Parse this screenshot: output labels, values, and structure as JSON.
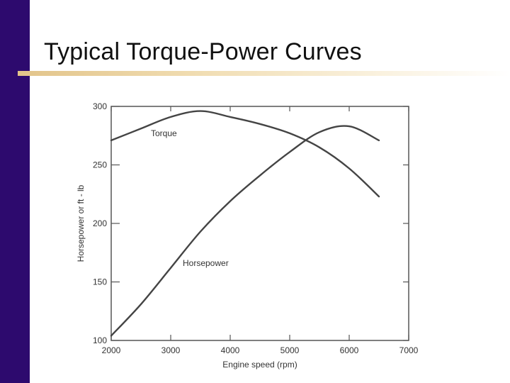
{
  "slide": {
    "title": "Typical Torque-Power Curves"
  },
  "colors": {
    "side_bar": "#2d0a6e",
    "title_rule": "#e2c48a",
    "curve": "#444444",
    "frame": "#555555"
  },
  "chart_data": {
    "type": "line",
    "title": "",
    "xlabel": "Engine speed (rpm)",
    "ylabel": "Horsepower or ft - lb",
    "xlim": [
      2000,
      7000
    ],
    "ylim": [
      100,
      300
    ],
    "x_ticks": [
      2000,
      3000,
      4000,
      5000,
      6000,
      7000
    ],
    "y_ticks": [
      100,
      150,
      200,
      250,
      300
    ],
    "grid": false,
    "legend": "none (curves labelled inline)",
    "series": [
      {
        "name": "Torque",
        "x": [
          2000,
          2500,
          3000,
          3500,
          4000,
          4500,
          5000,
          5500,
          6000,
          6500
        ],
        "y": [
          271,
          281,
          291,
          296,
          291,
          285,
          277,
          265,
          247,
          223
        ]
      },
      {
        "name": "Horsepower",
        "x": [
          2000,
          2500,
          3000,
          3500,
          4000,
          4500,
          5000,
          5500,
          6000,
          6500
        ],
        "y": [
          104,
          131,
          162,
          193,
          219,
          241,
          261,
          278,
          283,
          271
        ]
      }
    ]
  }
}
